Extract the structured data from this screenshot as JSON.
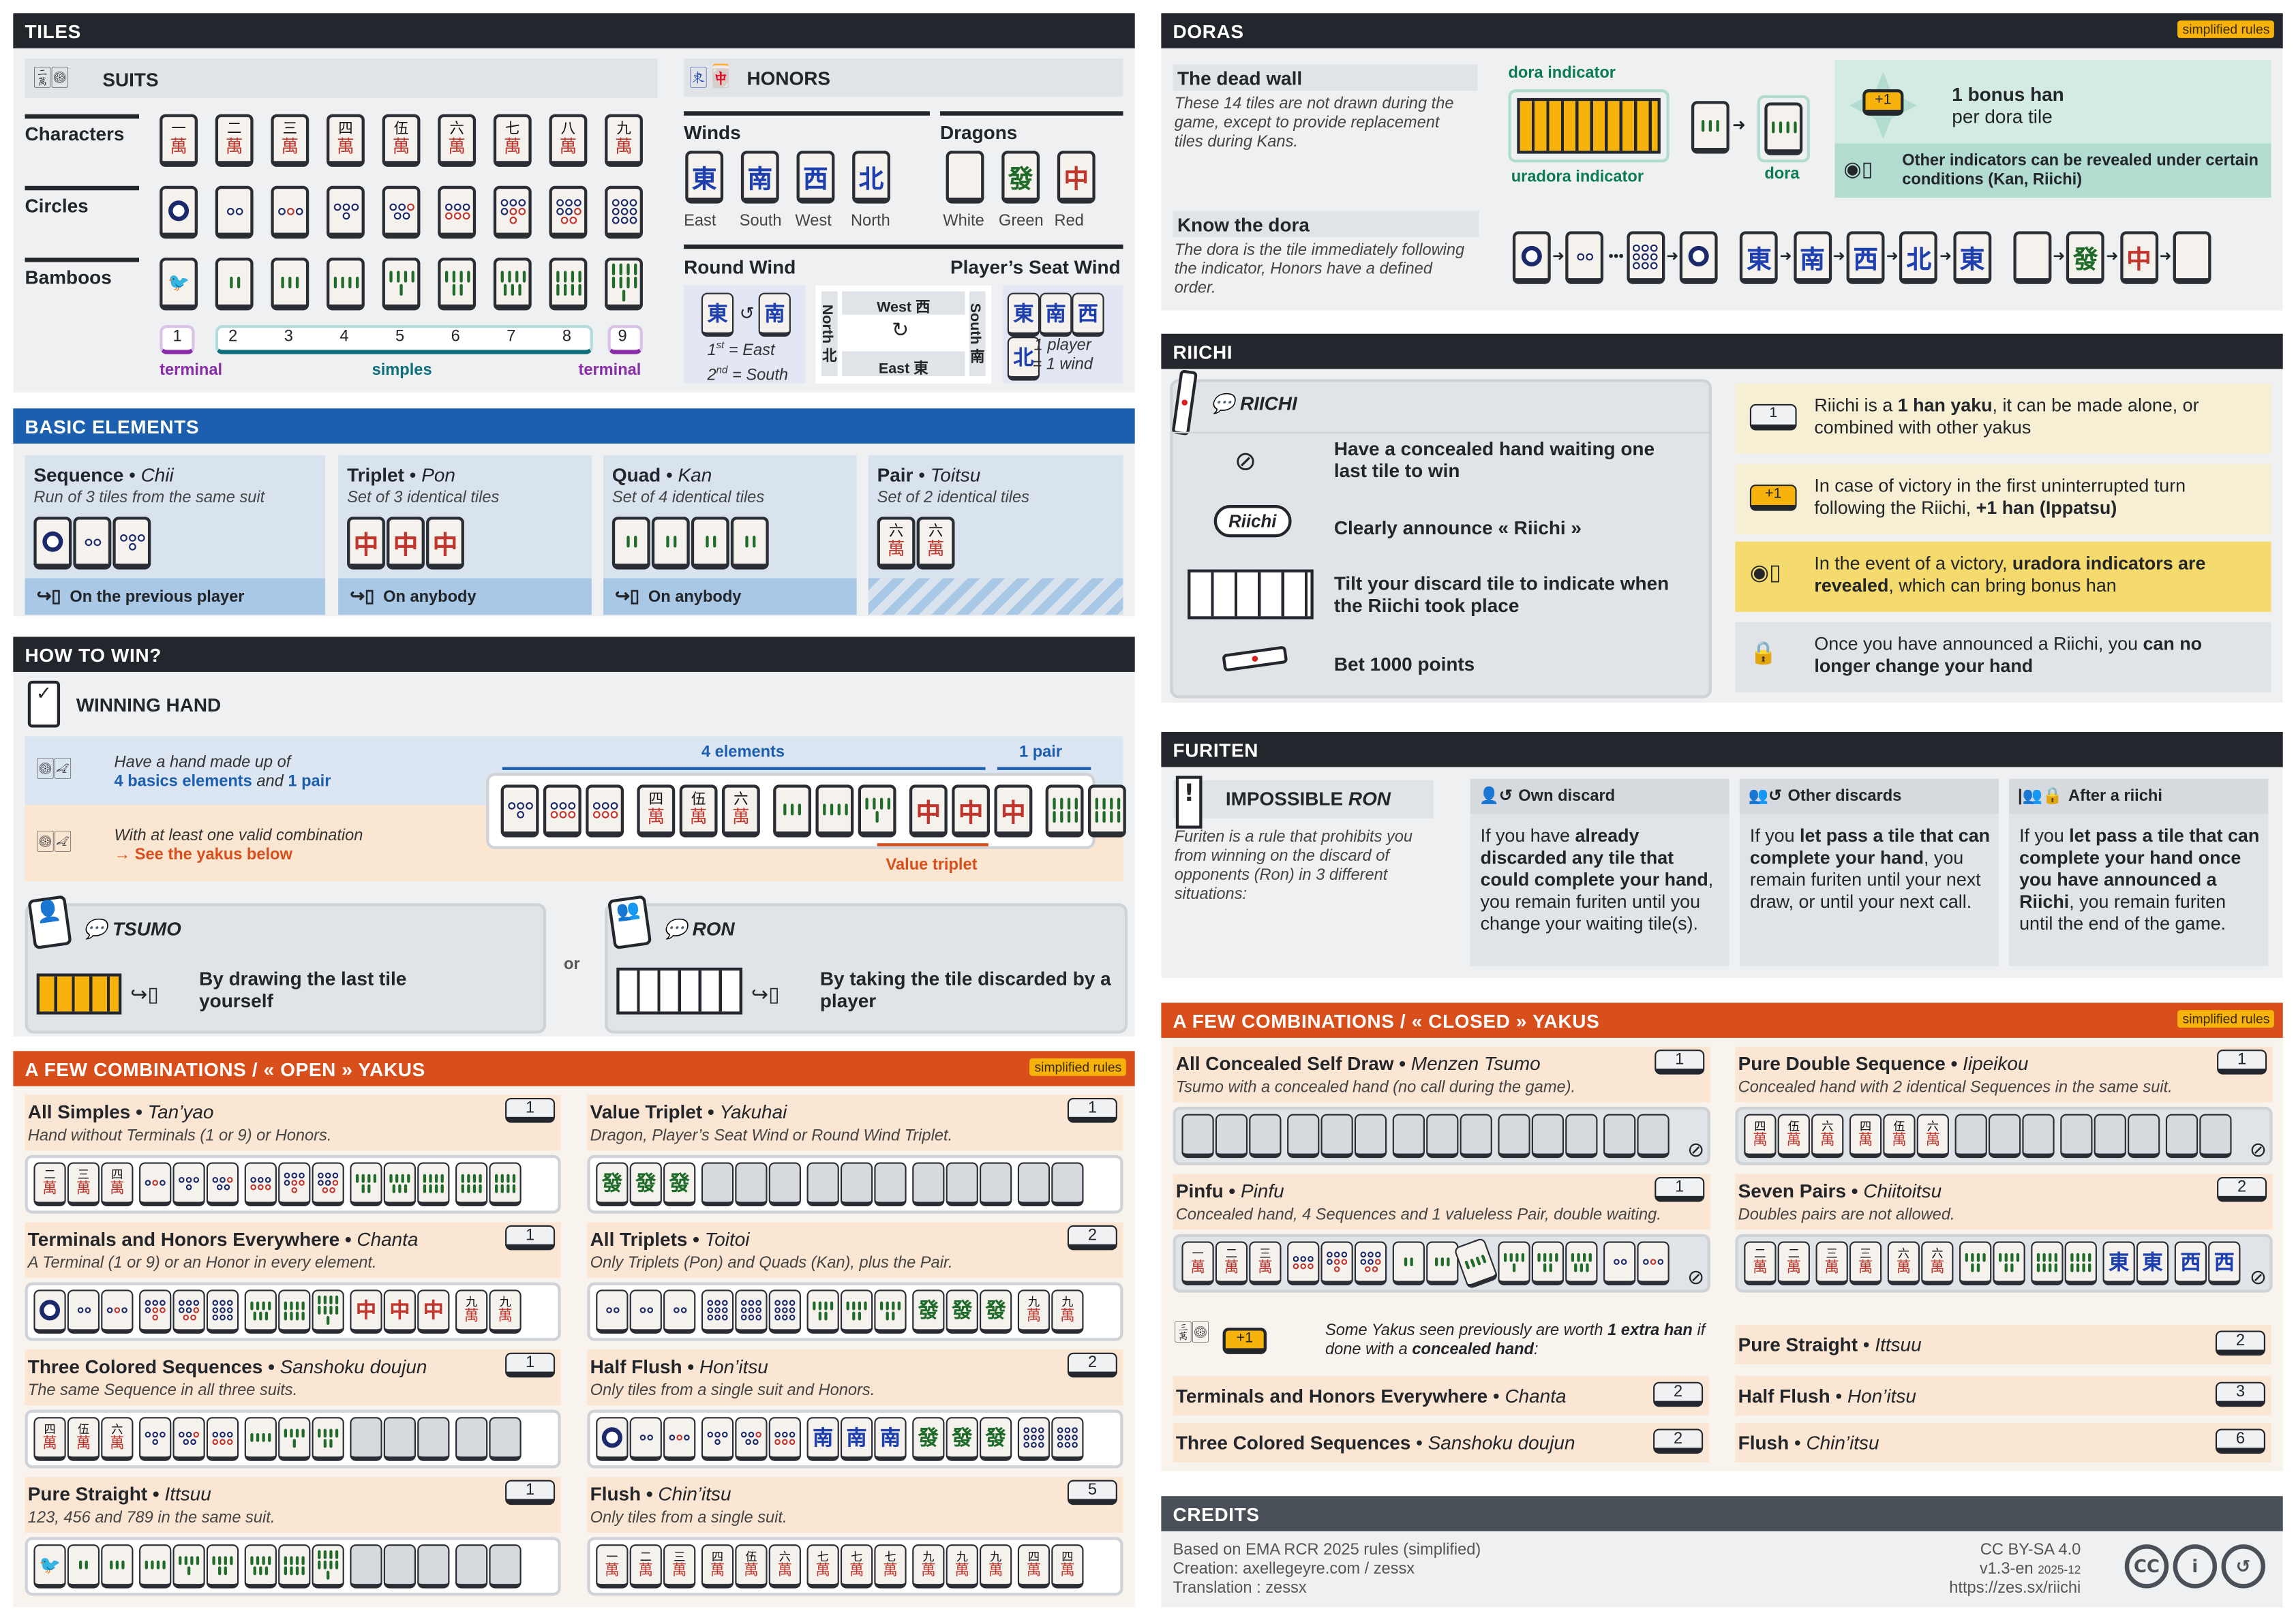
{
  "tiles_section": {
    "title": "TILES",
    "suits": {
      "title": "SUITS",
      "rows": [
        {
          "label": "Characters",
          "tiles": [
            "m1",
            "m2",
            "m3",
            "m4",
            "m5",
            "m6",
            "m7",
            "m8",
            "m9"
          ]
        },
        {
          "label": "Circles",
          "tiles": [
            "p1",
            "p2",
            "p3",
            "p4",
            "p5",
            "p6",
            "p7",
            "p8",
            "p9"
          ]
        },
        {
          "label": "Bamboos",
          "tiles": [
            "s1",
            "s2",
            "s3",
            "s4",
            "s5",
            "s6",
            "s7",
            "s8",
            "s9"
          ]
        }
      ],
      "numbers": [
        "1",
        "2",
        "3",
        "4",
        "5",
        "6",
        "7",
        "8",
        "9"
      ],
      "terminal_label": "terminal",
      "simples_label": "simples"
    },
    "honors": {
      "title": "HONORS",
      "winds": {
        "label": "Winds",
        "tiles": [
          "E",
          "S",
          "W",
          "N"
        ],
        "names": [
          "East",
          "South",
          "West",
          "North"
        ]
      },
      "dragons": {
        "label": "Dragons",
        "tiles": [
          "Wh",
          "G",
          "R"
        ],
        "names": [
          "White",
          "Green",
          "Red"
        ]
      },
      "round_wind": {
        "label": "Round Wind",
        "tiles": [
          "E",
          "S"
        ],
        "first_n": "1",
        "first_sup": "st",
        "first_rest": " = East",
        "second_n": "2",
        "second_sup": "nd",
        "second_rest": " = South"
      },
      "table": {
        "west": "West 西",
        "east": "East 東",
        "north": "North 北",
        "south": "South 南"
      },
      "seat_wind": {
        "label": "Player’s Seat Wind",
        "tiles": [
          "E",
          "S",
          "W",
          "N"
        ],
        "note1": "1 player",
        "note2": "= 1 wind"
      }
    }
  },
  "doras": {
    "title": "DORAS",
    "badge": "simplified rules",
    "dead_wall": {
      "title": "The dead wall",
      "text": "These 14 tiles are not drawn during the game, except to provide replacement tiles during Kans."
    },
    "dora_indicator": "dora indicator",
    "uradora_indicator": "uradora indicator",
    "dora": "dora",
    "indicator_tile": "s3",
    "dora_tile": "s4",
    "bonus": {
      "plus": "+1",
      "title": "1 bonus han",
      "sub": "per dora tile"
    },
    "other": "Other indicators can be revealed under certain conditions (Kan, Riichi)",
    "know": {
      "title": "Know the dora",
      "text": "The dora is the tile immediately following the indicator, Honors have a defined order."
    },
    "seq_suits": [
      "p1",
      "p2",
      "p9",
      "p1"
    ],
    "seq_winds": [
      "E",
      "S",
      "W",
      "N",
      "E"
    ],
    "seq_dragons": [
      "Wh",
      "G",
      "R",
      "Wh"
    ]
  },
  "basic": {
    "title": "BASIC ELEMENTS",
    "cards": [
      {
        "title": "Sequence",
        "jp": "Chii",
        "desc": "Run of 3 tiles from the same suit",
        "tiles": [
          "p1",
          "p2",
          "p4"
        ],
        "footer": "On the previous player"
      },
      {
        "title": "Triplet",
        "jp": "Pon",
        "desc": "Set of 3 identical tiles",
        "tiles": [
          "R",
          "R",
          "R"
        ],
        "footer": "On anybody"
      },
      {
        "title": "Quad",
        "jp": "Kan",
        "desc": "Set of 4 identical tiles",
        "tiles": [
          "s2",
          "s2",
          "s2",
          "s2"
        ],
        "footer": "On anybody"
      },
      {
        "title": "Pair",
        "jp": "Toitsu",
        "desc": "Set of 2 identical tiles",
        "tiles": [
          "m6",
          "m6"
        ],
        "footer": ""
      }
    ]
  },
  "how": {
    "title": "HOW TO WIN?",
    "winning": "WINNING HAND",
    "l1": "Have a hand made up of",
    "l2": [
      {
        "c": "4 basics elements"
      },
      {
        "t": " and "
      },
      {
        "c": "1 pair"
      }
    ],
    "l3": "With at least one valid combination",
    "l4": "→ See the yakus below",
    "elements": "4 elements",
    "pair": "1 pair",
    "value_triplet": "Value triplet",
    "hand": [
      [
        "p4",
        "p6",
        "p6"
      ],
      [
        "m4",
        "m5",
        "m6"
      ],
      [
        "s3",
        "s4",
        "s5"
      ],
      [
        "R",
        "R",
        "R"
      ],
      [
        "s8",
        "s8"
      ]
    ],
    "tsumo": {
      "title": "TSUMO",
      "text": "By drawing the last tile yourself"
    },
    "or": "or",
    "ron": {
      "title": "RON",
      "text": "By taking the tile discarded by a player"
    }
  },
  "open_yakus": {
    "title": "A FEW COMBINATIONS / « OPEN » YAKUS",
    "badge": "simplified rules",
    "cards": [
      {
        "name": "All Simples",
        "jp": "Tan’yao",
        "han": "1",
        "desc": "Hand without Terminals (1 or 9) or Honors.",
        "tiles": [
          [
            "m2",
            "m3",
            "m4"
          ],
          [
            "p3",
            "p4",
            "p5"
          ],
          [
            "p6",
            "p7",
            "p8"
          ],
          [
            "s6",
            "s7",
            "s8"
          ],
          [
            "s8",
            "s8"
          ]
        ]
      },
      {
        "name": "Value Triplet",
        "jp": "Yakuhai",
        "han": "1",
        "desc": "Dragon, Player’s Seat Wind or Round Wind Triplet.",
        "tiles": [
          [
            "G",
            "G",
            "G"
          ],
          [
            "back",
            "back",
            "back"
          ],
          [
            "back",
            "back",
            "back"
          ],
          [
            "back",
            "back",
            "back"
          ],
          [
            "back",
            "back"
          ]
        ]
      },
      {
        "name": "Terminals and Honors Everywhere",
        "jp": "Chanta",
        "han": "1",
        "desc": "A Terminal (1 or 9) or an Honor in every element.",
        "tiles": [
          [
            "p1",
            "p2",
            "p3"
          ],
          [
            "p7",
            "p8",
            "p9"
          ],
          [
            "s7",
            "s8",
            "s9"
          ],
          [
            "R",
            "R",
            "R"
          ],
          [
            "m9",
            "m9"
          ]
        ]
      },
      {
        "name": "All Triplets",
        "jp": "Toitoi",
        "han": "2",
        "desc": "Only Triplets (Pon) and Quads (Kan), plus the Pair.",
        "tiles": [
          [
            "p2",
            "p2",
            "p2"
          ],
          [
            "p9",
            "p9",
            "p9"
          ],
          [
            "s6",
            "s6",
            "s6"
          ],
          [
            "G",
            "G",
            "G"
          ],
          [
            "m9",
            "m9"
          ]
        ]
      },
      {
        "name": "Three Colored Sequences",
        "jp": "Sanshoku doujun",
        "han": "1",
        "desc": "The same Sequence in all three suits.",
        "tiles": [
          [
            "m4",
            "m5",
            "m6"
          ],
          [
            "p4",
            "p5",
            "p6"
          ],
          [
            "s4",
            "s5",
            "s6"
          ],
          [
            "back",
            "back",
            "back"
          ],
          [
            "back",
            "back"
          ]
        ]
      },
      {
        "name": "Half Flush",
        "jp": "Hon’itsu",
        "han": "2",
        "desc": "Only tiles from a single suit and Honors.",
        "tiles": [
          [
            "p1",
            "p2",
            "p3"
          ],
          [
            "p4",
            "p5",
            "p6"
          ],
          [
            "S",
            "S",
            "S"
          ],
          [
            "G",
            "G",
            "G"
          ],
          [
            "p9",
            "p9"
          ]
        ]
      },
      {
        "name": "Pure Straight",
        "jp": "Ittsuu",
        "han": "1",
        "desc": "123, 456 and 789 in the same suit.",
        "tiles": [
          [
            "s1",
            "s2",
            "s3"
          ],
          [
            "s4",
            "s5",
            "s6"
          ],
          [
            "s7",
            "s8",
            "s9"
          ],
          [
            "back",
            "back",
            "back"
          ],
          [
            "back",
            "back"
          ]
        ]
      },
      {
        "name": "Flush",
        "jp": "Chin’itsu",
        "han": "5",
        "desc": "Only tiles from a single suit.",
        "tiles": [
          [
            "m1",
            "m2",
            "m3"
          ],
          [
            "m4",
            "m5",
            "m6"
          ],
          [
            "m7",
            "m7",
            "m7"
          ],
          [
            "m9",
            "m9",
            "m9"
          ],
          [
            "m4",
            "m4"
          ]
        ]
      }
    ]
  },
  "riichi": {
    "title": "RIICHI",
    "panel": "RIICHI",
    "bubble": "Riichi",
    "steps": [
      "Have a concealed hand waiting one last tile to win",
      "Clearly announce « Riichi »",
      "Tilt your discard tile to indicate when the Riichi took place",
      "Bet 1000 points"
    ],
    "rules": [
      {
        "badge": "1",
        "rich": [
          {
            "t": "Riichi is a "
          },
          {
            "b": "1 han yaku"
          },
          {
            "t": ", it can be made alone, or combined with other yakus"
          }
        ]
      },
      {
        "badge": "+1",
        "rich": [
          {
            "t": "In case of victory in the first uninterrupted turn following the Riichi, "
          },
          {
            "b": "+1 han (Ippatsu)"
          }
        ]
      },
      {
        "badge": "",
        "rich": [
          {
            "t": "In the event of a victory, "
          },
          {
            "b": "uradora indicators are revealed"
          },
          {
            "t": ", which can bring bonus han"
          }
        ]
      },
      {
        "badge": "",
        "rich": [
          {
            "t": "Once you have announced a Riichi, you "
          },
          {
            "b": "can no longer change your hand"
          }
        ]
      }
    ]
  },
  "furiten": {
    "title": "FURITEN",
    "impossible": "IMPOSSIBLE",
    "ron": "RON",
    "desc": "Furiten is a rule that prohibits you from winning on the discard of opponents (Ron) in 3 different situations:",
    "cols": [
      {
        "title": "Own discard",
        "rich": [
          {
            "t": "If you have "
          },
          {
            "b": "already discarded any tile that could complete your hand"
          },
          {
            "t": ", you remain furiten until you change your waiting tile(s)."
          }
        ]
      },
      {
        "title": "Other discards",
        "rich": [
          {
            "t": "If you "
          },
          {
            "b": "let pass a tile that can complete your hand"
          },
          {
            "t": ", you remain furiten until your next draw, or until your next call."
          }
        ]
      },
      {
        "title": "After a riichi",
        "rich": [
          {
            "t": "If you "
          },
          {
            "b": "let pass a tile that can complete your hand once you have announced a Riichi"
          },
          {
            "t": ", you remain furiten until the end of the game."
          }
        ]
      }
    ]
  },
  "closed_yakus": {
    "title": "A FEW COMBINATIONS / « CLOSED » YAKUS",
    "badge": "simplified rules",
    "cards": [
      {
        "name": "All Concealed Self Draw",
        "jp": "Menzen Tsumo",
        "han": "1",
        "desc": "Tsumo with a concealed hand (no call during the game).",
        "tiles": [
          [
            "back",
            "back",
            "back"
          ],
          [
            "back",
            "back",
            "back"
          ],
          [
            "back",
            "back",
            "back"
          ],
          [
            "back",
            "back",
            "back"
          ],
          [
            "back",
            "back"
          ]
        ]
      },
      {
        "name": "Pure Double Sequence",
        "jp": "Iipeikou",
        "han": "1",
        "desc": "Concealed hand with 2 identical Sequences in the same suit.",
        "tiles": [
          [
            "m4",
            "m5",
            "m6"
          ],
          [
            "m4",
            "m5",
            "m6"
          ],
          [
            "back",
            "back",
            "back"
          ],
          [
            "back",
            "back",
            "back"
          ],
          [
            "back",
            "back"
          ]
        ]
      },
      {
        "name": "Pinfu",
        "jp": "Pinfu",
        "han": "1",
        "desc": "Concealed hand, 4 Sequences and 1 valueless Pair, double waiting.",
        "tiles": [
          [
            "m1",
            "m2",
            "m3"
          ],
          [
            "p6",
            "p7",
            "p8"
          ],
          [
            "s2",
            "s3",
            "s4*"
          ],
          [
            "s5",
            "s6",
            "s7"
          ],
          [
            "p2",
            "p3"
          ]
        ]
      },
      {
        "name": "Seven Pairs",
        "jp": "Chiitoitsu",
        "han": "2",
        "desc": "Doubles pairs are not allowed.",
        "tiles": [
          [
            "m2",
            "m2"
          ],
          [
            "m3",
            "m3"
          ],
          [
            "m6",
            "m6"
          ],
          [
            "s6",
            "s6"
          ],
          [
            "s8",
            "s8"
          ],
          [
            "E",
            "E"
          ],
          [
            "W",
            "W"
          ]
        ]
      }
    ],
    "extra": {
      "plus": "+1",
      "rich": [
        {
          "t": "Some Yakus seen previously are worth "
        },
        {
          "b": "1 extra han"
        },
        {
          "t": " if done with a "
        },
        {
          "b": "concealed hand"
        },
        {
          "t": ":"
        }
      ]
    },
    "list": [
      {
        "name": "Pure Straight",
        "jp": "Ittsuu",
        "han": "2"
      },
      {
        "name": "Terminals and Honors Everywhere",
        "jp": "Chanta",
        "han": "2"
      },
      {
        "name": "Half Flush",
        "jp": "Hon’itsu",
        "han": "3"
      },
      {
        "name": "Three Colored Sequences",
        "jp": "Sanshoku doujun",
        "han": "2"
      },
      {
        "name": "Flush",
        "jp": "Chin’itsu",
        "han": "6"
      }
    ]
  },
  "credits": {
    "title": "CREDITS",
    "lines": [
      "Based on EMA RCR 2025 rules (simplified)",
      "Creation: axellegeyre.com / zessx",
      "Translation : zessx"
    ],
    "license": "CC BY-SA 4.0",
    "version": "v1.3-en",
    "date": "2025-12",
    "url": "https://zes.sx/riichi",
    "cc_icons": [
      "CC",
      "i",
      "↺"
    ]
  },
  "colors": {
    "dark": "#23262c",
    "blue": "#1b5fae",
    "orange": "#d94f1c",
    "gold": "#f7b30c",
    "green": "#0c7a55",
    "teal": "#0f6e7c",
    "purple": "#8a2da8"
  }
}
